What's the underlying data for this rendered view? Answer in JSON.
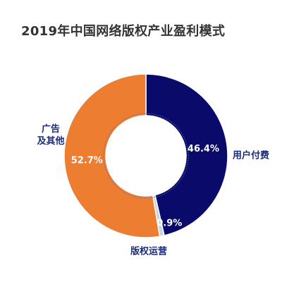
{
  "chart_data": {
    "type": "pie",
    "title": "2019年中国网络版权产业盈利模式",
    "categories": [
      "用户付费",
      "版权运营",
      "广告及其他"
    ],
    "values": [
      46.4,
      0.9,
      52.7
    ],
    "value_labels": [
      "46.4%",
      "0.9%",
      "52.7%"
    ],
    "category_label_lines": [
      [
        "用户付费"
      ],
      [
        "版权运营"
      ],
      [
        "广告",
        "及其他"
      ]
    ],
    "colors": [
      "#0a0a6b",
      "#c8d4e3",
      "#ed7d31"
    ],
    "inner_ring_color": "#4472c4",
    "legend": "none"
  }
}
